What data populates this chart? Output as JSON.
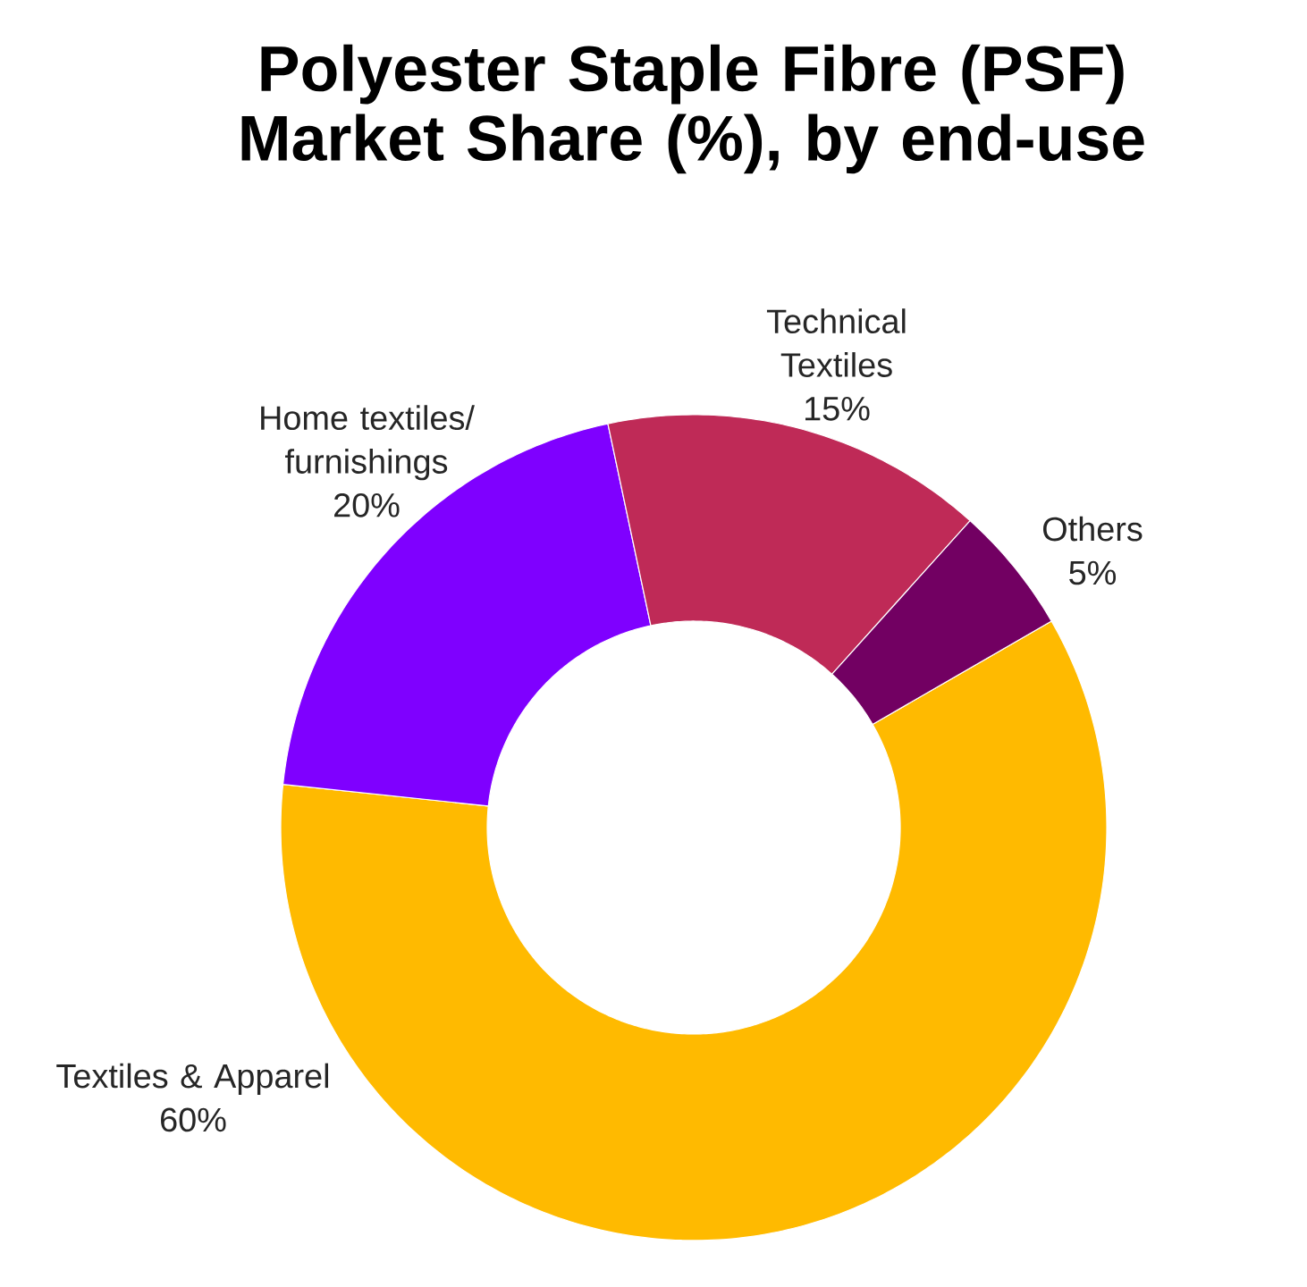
{
  "chart_data": {
    "type": "donut",
    "title": "Polyester Staple Fibre (PSF) Market Share (%), by end-use",
    "categories": [
      "Textiles & Apparel",
      "Home textiles/ furnishings",
      "Technical Textiles",
      "Others"
    ],
    "values": [
      60,
      20,
      15,
      5
    ],
    "value_labels": [
      "60%",
      "20%",
      "15%",
      "5%"
    ],
    "colors": [
      "#ffba00",
      "#7f00ff",
      "#bf2a57",
      "#720062"
    ]
  }
}
